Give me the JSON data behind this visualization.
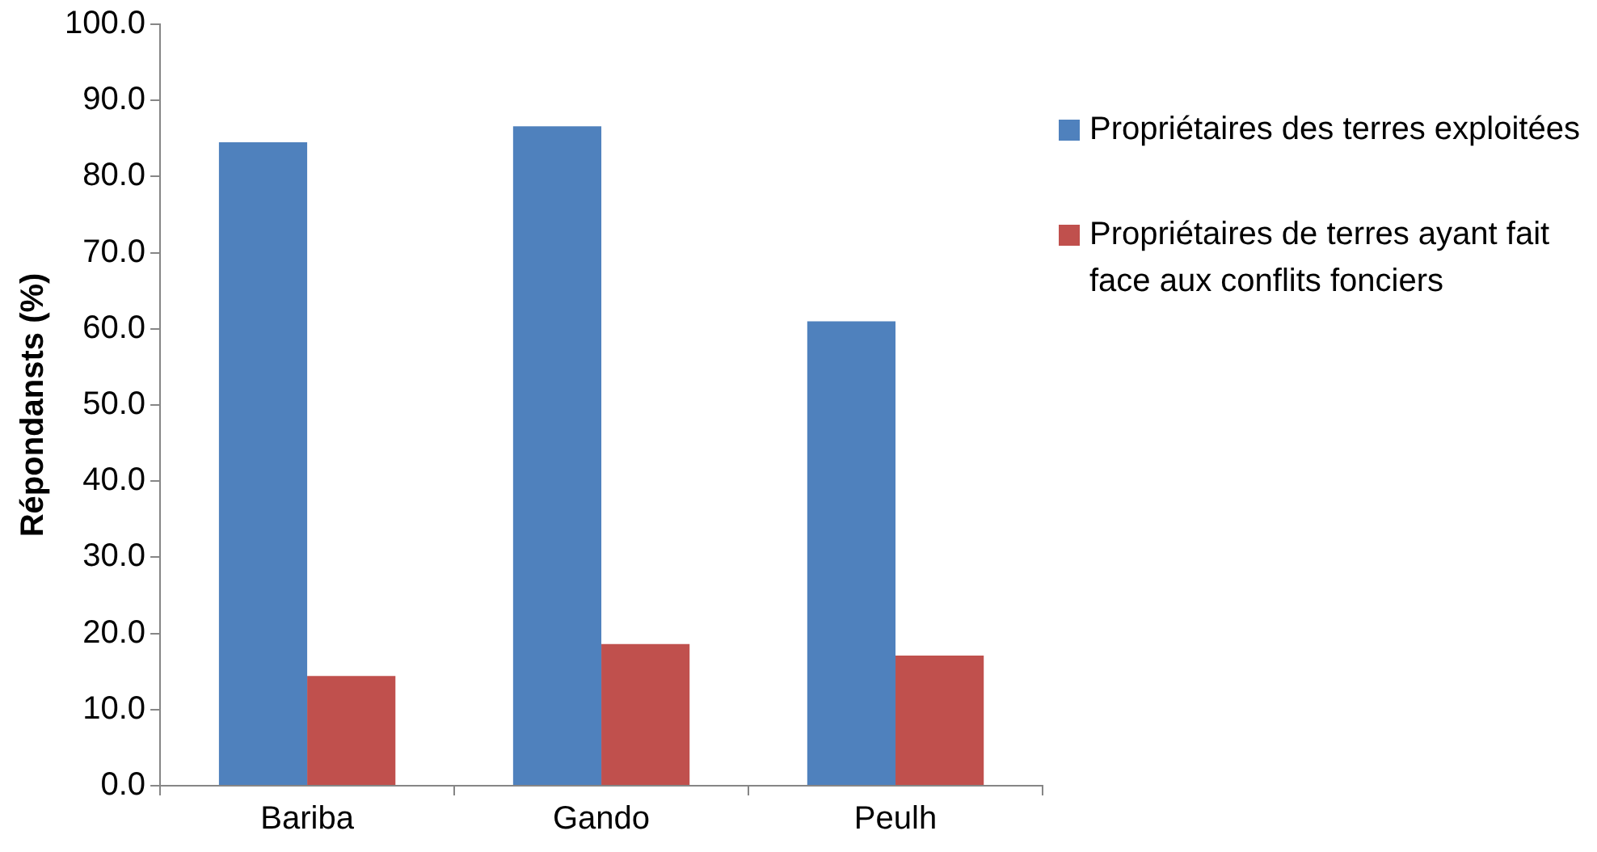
{
  "chart_data": {
    "type": "bar",
    "ylabel": "Répondansts (%)",
    "categories": [
      "Bariba",
      "Gando",
      "Peulh"
    ],
    "series": [
      {
        "name": "Propriétaires des terres exploitées",
        "color": "#4f81bd",
        "values": [
          84.5,
          86.6,
          61.0
        ]
      },
      {
        "name": "Propriétaires de terres ayant fait face aux conflits fonciers",
        "color": "#c0504d",
        "values": [
          14.4,
          18.6,
          17.1
        ]
      }
    ],
    "ylim": [
      0,
      100
    ],
    "yticks": [
      {
        "value": 0,
        "label": "0.0"
      },
      {
        "value": 10,
        "label": "10.0"
      },
      {
        "value": 20,
        "label": "20.0"
      },
      {
        "value": 30,
        "label": "30.0"
      },
      {
        "value": 40,
        "label": "40.0"
      },
      {
        "value": 50,
        "label": "50.0"
      },
      {
        "value": 60,
        "label": "60.0"
      },
      {
        "value": 70,
        "label": "70.0"
      },
      {
        "value": 80,
        "label": "80.0"
      },
      {
        "value": 90,
        "label": "90.0"
      },
      {
        "value": 100,
        "label": "100.0"
      }
    ],
    "grid": false,
    "legend": "right"
  }
}
